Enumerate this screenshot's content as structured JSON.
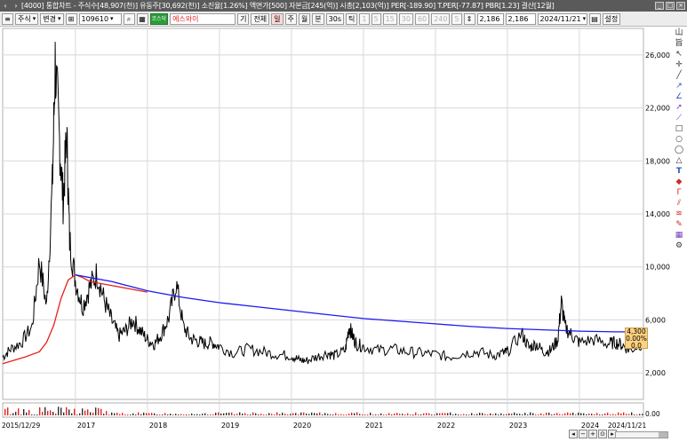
{
  "window": {
    "title": "[4000] 통합차트 - 주식수[48,907(천)] 유동주[30,692(천)] 소진율[1.26%] 액면가[500] 자본금[245(억)] 시총[2,103(억)] PER[-189.90] T.PER[-77.87] PBR[1.23] 결산[12월]",
    "controls": [
      "_",
      "□",
      "×"
    ]
  },
  "toolbar": {
    "market": "주식",
    "change": "변경",
    "code": "109610",
    "sector_badge": "코스닥",
    "name": "에스와이",
    "price_type": "기",
    "all": "전체",
    "periods": [
      "일",
      "주",
      "월",
      "분",
      "30s",
      "틱"
    ],
    "minute_values": [
      "1",
      "5",
      "15",
      "30",
      "60",
      "240",
      "5"
    ],
    "price_a": "2,186",
    "price_b": "2,186",
    "date": "2024/11/21",
    "settings": "설정"
  },
  "side_tools": {
    "header": [
      "山",
      "旨"
    ],
    "icons": [
      "cursor-icon",
      "crosshair-icon",
      "line-icon",
      "trendline-icon",
      "angle-line-icon",
      "arrow-line-icon",
      "ray-icon",
      "rectangle-icon",
      "circle-icon",
      "ellipse-icon",
      "triangle-icon",
      "text-icon",
      "fill-icon",
      "fibonacci-icon",
      "gann-icon",
      "channel-icon",
      "pencil-icon",
      "grid-icon",
      "gear-icon"
    ]
  },
  "colors": {
    "price": "#000000",
    "ma_short": "#e8211e",
    "ma_long": "#1a1af0",
    "grid": "#d8d8d8",
    "volume_red": "#e8211e",
    "volume_dark": "#2b2b2b"
  },
  "chart_data": {
    "type": "line",
    "x_axis": {
      "start_label": "2015/12/29",
      "end_label": "2024/11/21",
      "year_labels": [
        "2017",
        "2018",
        "2019",
        "2020",
        "2021",
        "2022",
        "2023",
        "2024"
      ]
    },
    "y_axis": {
      "ticks": [
        "26,000",
        "22,000",
        "18,000",
        "14,000",
        "10,000",
        "6,000",
        "2,000"
      ],
      "tick_values": [
        26000,
        22000,
        18000,
        14000,
        10000,
        6000,
        2000
      ],
      "min": 0,
      "max": 28000
    },
    "current": {
      "price": "4,300",
      "change_pct": "0.00%",
      "change": "0.0"
    },
    "volume_axis_label": "0.00",
    "series": [
      {
        "key": "price",
        "x": [
          2015.99,
          2016.1,
          2016.25,
          2016.4,
          2016.5,
          2016.6,
          2016.68,
          2016.72,
          2016.78,
          2016.83,
          2016.88,
          2016.92,
          2017.0,
          2017.1,
          2017.2,
          2017.3,
          2017.4,
          2017.5,
          2017.6,
          2017.7,
          2017.8,
          2017.9,
          2018.0,
          2018.1,
          2018.2,
          2018.3,
          2018.4,
          2018.5,
          2018.6,
          2018.7,
          2018.8,
          2018.9,
          2019.0,
          2019.2,
          2019.4,
          2019.6,
          2019.8,
          2020.0,
          2020.1,
          2020.2,
          2020.35,
          2020.5,
          2020.6,
          2020.75,
          2020.8,
          2020.85,
          2020.9,
          2021.0,
          2021.2,
          2021.4,
          2021.6,
          2021.8,
          2022.0,
          2022.2,
          2022.4,
          2022.6,
          2022.8,
          2022.95,
          2023.0,
          2023.2,
          2023.3,
          2023.4,
          2023.5,
          2023.6,
          2023.7,
          2023.75,
          2023.8,
          2023.9,
          2024.0,
          2024.2,
          2024.4,
          2024.5,
          2024.6,
          2024.7,
          2024.89
        ],
        "y": [
          3200,
          3800,
          4300,
          5500,
          10500,
          7000,
          16000,
          25500,
          19500,
          15000,
          20000,
          12000,
          9000,
          7000,
          8500,
          9500,
          7500,
          6000,
          4800,
          5200,
          6000,
          5200,
          4500,
          4200,
          5000,
          6200,
          8800,
          5500,
          4600,
          4400,
          4200,
          4300,
          4000,
          3500,
          3800,
          3600,
          3400,
          3300,
          3000,
          2900,
          3200,
          3500,
          3300,
          3700,
          5500,
          4800,
          4200,
          4000,
          3700,
          3800,
          3600,
          3500,
          3400,
          3200,
          3500,
          3600,
          3300,
          3500,
          3600,
          5000,
          3900,
          4200,
          3600,
          3700,
          4500,
          7300,
          5500,
          4800,
          4300,
          4500,
          4200,
          4300,
          4100,
          3700,
          4300
        ]
      },
      {
        "key": "ma_short",
        "x": [
          2015.99,
          2016.3,
          2016.5,
          2016.6,
          2016.7,
          2016.8,
          2016.9,
          2017.0,
          2017.1,
          2017.2,
          2017.3,
          2017.5,
          2017.8,
          2018.0
        ],
        "y": [
          2700,
          3200,
          3600,
          4300,
          5600,
          7600,
          9000,
          9400,
          9200,
          8900,
          8800,
          8600,
          8300,
          8100
        ]
      },
      {
        "key": "ma_long",
        "x": [
          2017.0,
          2017.5,
          2018.0,
          2018.5,
          2019.0,
          2019.5,
          2020.0,
          2020.5,
          2021.0,
          2021.5,
          2022.0,
          2022.5,
          2023.0,
          2023.5,
          2024.0,
          2024.5,
          2024.89
        ],
        "y": [
          9400,
          8900,
          8200,
          7700,
          7300,
          7000,
          6700,
          6400,
          6100,
          5900,
          5700,
          5500,
          5350,
          5250,
          5150,
          5100,
          5100
        ]
      }
    ]
  }
}
